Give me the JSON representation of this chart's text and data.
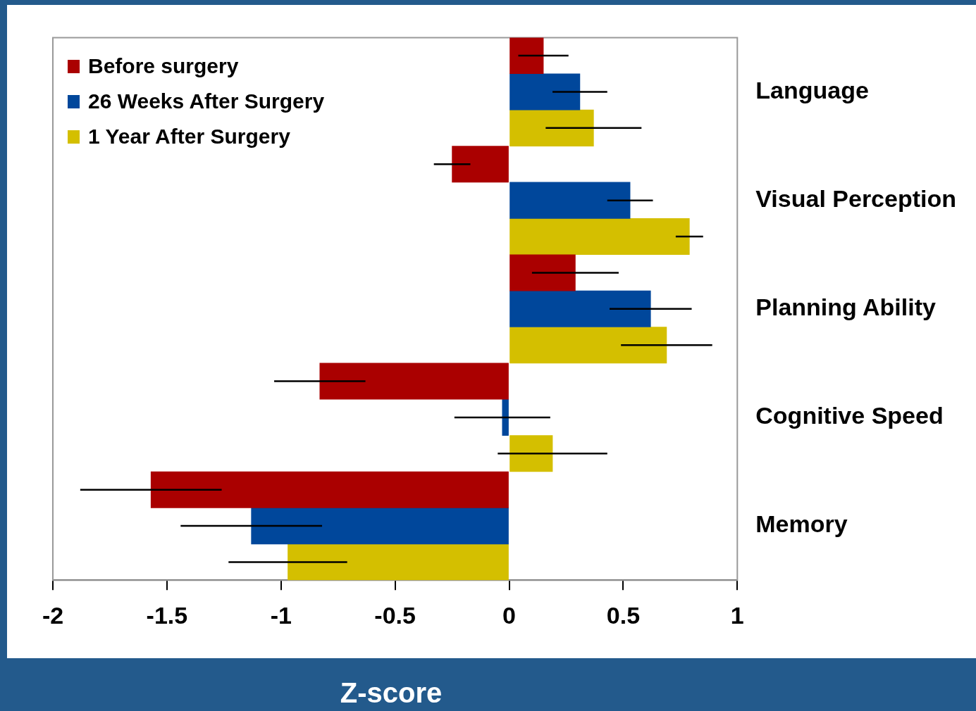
{
  "chart_data": {
    "type": "bar",
    "orientation": "horizontal",
    "xlabel": "Z-score",
    "categories": [
      "Language",
      "Visual Perception",
      "Planning Ability",
      "Cognitive Speed",
      "Memory"
    ],
    "series": [
      {
        "name": "Before surgery",
        "color": "#aa0000",
        "values": [
          0.15,
          -0.25,
          0.29,
          -0.83,
          -1.57
        ],
        "errors": [
          0.11,
          0.08,
          0.19,
          0.2,
          0.31
        ]
      },
      {
        "name": "26 Weeks After Surgery",
        "color": "#00479b",
        "values": [
          0.31,
          0.53,
          0.62,
          -0.03,
          -1.13
        ],
        "errors": [
          0.12,
          0.1,
          0.18,
          0.21,
          0.31
        ]
      },
      {
        "name": "1 Year After Surgery",
        "color": "#d4bf00",
        "values": [
          0.37,
          0.79,
          0.69,
          0.19,
          -0.97
        ],
        "errors": [
          0.21,
          0.06,
          0.2,
          0.24,
          0.26
        ]
      }
    ],
    "xlim": [
      -2,
      1
    ],
    "xticks": [
      -2,
      -1.5,
      -1,
      -0.5,
      0,
      0.5,
      1
    ],
    "grid": false,
    "legend": "top left"
  }
}
